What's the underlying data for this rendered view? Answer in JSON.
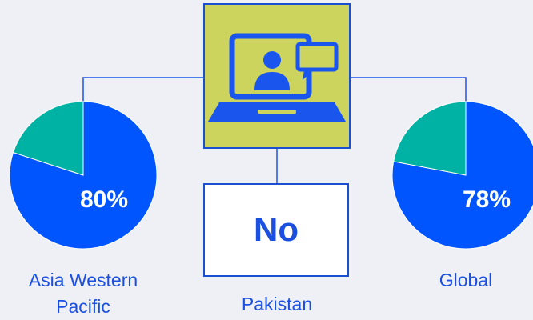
{
  "chart_data": [
    {
      "type": "pie",
      "values": [
        80,
        20
      ],
      "value_labels": [
        "80%",
        null
      ],
      "colors": [
        "#0055ff",
        "#00b2a4"
      ],
      "label": "Asia Western Pacific"
    },
    {
      "type": "pie",
      "values": [
        78,
        22
      ],
      "value_labels": [
        "78%",
        null
      ],
      "colors": [
        "#0055ff",
        "#00b2a4"
      ],
      "label": "Global"
    }
  ],
  "center": {
    "value": "No",
    "label": "Pakistan"
  }
}
